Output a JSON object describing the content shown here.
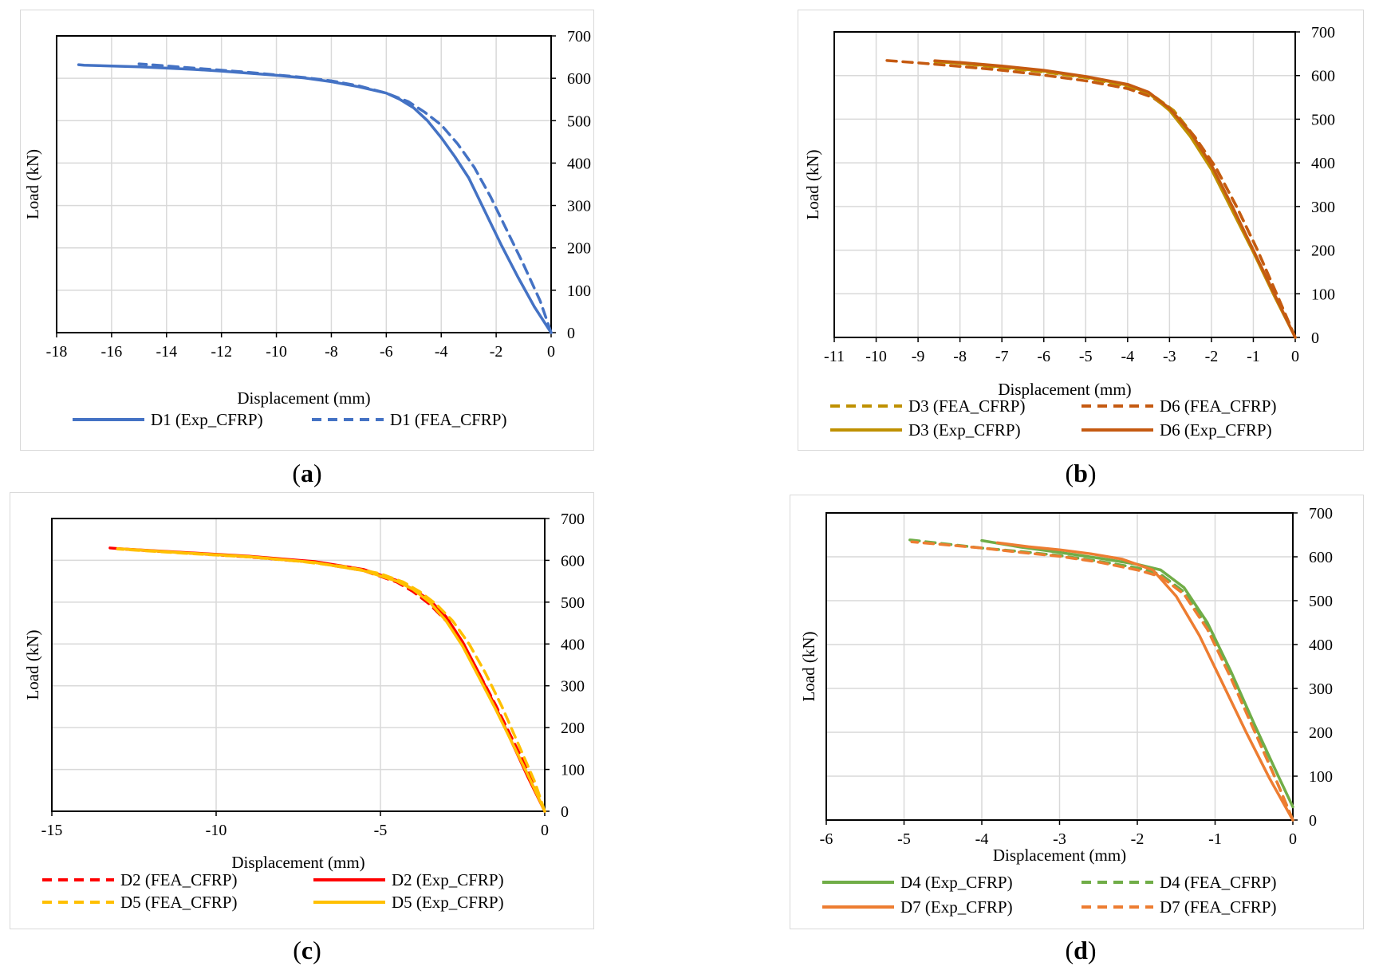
{
  "chart_data": [
    {
      "id": "a",
      "label": "a",
      "type": "line",
      "xlabel": "Displacement (mm)",
      "ylabel": "Load (kN)",
      "xlim": [
        -18,
        0
      ],
      "ylim": [
        0,
        700
      ],
      "xticks": [
        -18,
        -16,
        -14,
        -12,
        -10,
        -8,
        -6,
        -4,
        -2,
        0
      ],
      "yticks": [
        0,
        100,
        200,
        300,
        400,
        500,
        600,
        700
      ],
      "grid": true,
      "legend": "bottom",
      "series": [
        {
          "name": "D1 (Exp_CFRP)",
          "color": "#4472C4",
          "dash": false,
          "x": [
            0,
            -0.6,
            -1.2,
            -1.8,
            -2.4,
            -3.0,
            -3.5,
            -4.0,
            -4.5,
            -5.0,
            -5.5,
            -6.0,
            -7.0,
            -8.0,
            -9.0,
            -10.0,
            -11.0,
            -12.0,
            -13.0,
            -14.0,
            -15.0,
            -16.0,
            -17.0,
            -17.2
          ],
          "y": [
            0,
            60,
            130,
            205,
            285,
            365,
            415,
            460,
            500,
            530,
            550,
            565,
            580,
            592,
            601,
            607,
            612,
            617,
            621,
            624,
            627,
            629,
            631,
            632
          ]
        },
        {
          "name": "D1 (FEA_CFRP)",
          "color": "#4472C4",
          "dash": true,
          "x": [
            0,
            -0.4,
            -1.0,
            -1.6,
            -2.2,
            -2.8,
            -3.4,
            -4.0,
            -4.6,
            -5.2,
            -6.0,
            -7.0,
            -8.0,
            -9.0,
            -10.0,
            -11.0,
            -12.0,
            -13.0,
            -14.0,
            -15.0
          ],
          "y": [
            0,
            75,
            160,
            240,
            320,
            390,
            445,
            490,
            520,
            545,
            565,
            582,
            594,
            602,
            608,
            614,
            619,
            624,
            629,
            634
          ]
        }
      ]
    },
    {
      "id": "b",
      "label": "b",
      "type": "line",
      "xlabel": "Displacement (mm)",
      "ylabel": "Load (kN)",
      "xlim": [
        -11,
        0
      ],
      "ylim": [
        0,
        700
      ],
      "xticks": [
        -11,
        -10,
        -9,
        -8,
        -7,
        -6,
        -5,
        -4,
        -3,
        -2,
        -1,
        0
      ],
      "yticks": [
        0,
        100,
        200,
        300,
        400,
        500,
        600,
        700
      ],
      "grid": true,
      "legend": "bottom",
      "series": [
        {
          "name": "D3 (FEA_CFRP)",
          "color": "#BF9000",
          "dash": true,
          "x": [
            0,
            -0.4,
            -0.9,
            -1.4,
            -1.9,
            -2.4,
            -2.9,
            -3.4,
            -4.0,
            -5.0,
            -6.0,
            -7.0,
            -8.0,
            -8.7
          ],
          "y": [
            0,
            90,
            200,
            300,
            390,
            460,
            520,
            555,
            575,
            595,
            608,
            618,
            628,
            634
          ]
        },
        {
          "name": "D6 (FEA_CFRP)",
          "color": "#C55A11",
          "dash": true,
          "x": [
            0,
            -0.4,
            -0.9,
            -1.4,
            -1.9,
            -2.4,
            -2.9,
            -3.4,
            -4.0,
            -5.0,
            -6.0,
            -7.0,
            -8.0,
            -9.0,
            -9.8
          ],
          "y": [
            0,
            90,
            200,
            300,
            390,
            460,
            515,
            550,
            570,
            588,
            601,
            612,
            621,
            629,
            635
          ]
        },
        {
          "name": "D3 (Exp_CFRP)",
          "color": "#BF9000",
          "dash": false,
          "x": [
            0,
            -0.5,
            -1.0,
            -1.5,
            -2.0,
            -2.5,
            -3.0,
            -3.5,
            -4.0,
            -5.0,
            -6.0,
            -7.0,
            -8.0,
            -8.6
          ],
          "y": [
            0,
            95,
            195,
            290,
            385,
            460,
            520,
            560,
            578,
            597,
            610,
            620,
            628,
            632
          ]
        },
        {
          "name": "D6 (Exp_CFRP)",
          "color": "#C55A11",
          "dash": false,
          "x": [
            0,
            -0.5,
            -1.0,
            -1.5,
            -2.0,
            -2.5,
            -3.0,
            -3.5,
            -4.0,
            -5.0,
            -6.0,
            -7.0,
            -8.0,
            -8.6
          ],
          "y": [
            0,
            100,
            200,
            300,
            395,
            470,
            525,
            562,
            580,
            598,
            612,
            622,
            630,
            634
          ]
        }
      ]
    },
    {
      "id": "c",
      "label": "c",
      "type": "line",
      "xlabel": "Displacement (mm)",
      "ylabel": "Load (kN)",
      "xlim": [
        -15,
        0
      ],
      "ylim": [
        0,
        700
      ],
      "xticks": [
        -15,
        -10,
        -5,
        0
      ],
      "yticks": [
        0,
        100,
        200,
        300,
        400,
        500,
        600,
        700
      ],
      "grid": true,
      "legend": "bottom",
      "series": [
        {
          "name": "D2 (FEA_CFRP)",
          "color": "#FF0000",
          "dash": true,
          "x": [
            0,
            -0.5,
            -1.0,
            -1.5,
            -2.0,
            -2.5,
            -3.0,
            -3.5,
            -4.0,
            -4.5,
            -5.5,
            -7.0,
            -9.0,
            -11.0,
            -12.5,
            -13.3
          ],
          "y": [
            0,
            95,
            175,
            255,
            330,
            400,
            455,
            495,
            525,
            548,
            575,
            595,
            608,
            618,
            625,
            630
          ]
        },
        {
          "name": "D2 (Exp_CFRP)",
          "color": "#FF0000",
          "dash": false,
          "x": [
            0,
            -0.5,
            -1.0,
            -1.5,
            -2.0,
            -2.5,
            -3.0,
            -3.5,
            -4.0,
            -4.5,
            -5.5,
            -7.0,
            -9.0,
            -11.0,
            -13.0
          ],
          "y": [
            0,
            80,
            165,
            250,
            330,
            405,
            465,
            505,
            530,
            552,
            578,
            597,
            610,
            619,
            628
          ]
        },
        {
          "name": "D5 (FEA_CFRP)",
          "color": "#FFC000",
          "dash": true,
          "x": [
            0,
            -0.3,
            -0.8,
            -1.3,
            -1.8,
            -2.3,
            -2.8,
            -3.3,
            -3.8,
            -4.3,
            -5.0,
            -6.0,
            -7.5,
            -9.0,
            -11.0,
            -13.0
          ],
          "y": [
            0,
            70,
            160,
            250,
            330,
            400,
            455,
            495,
            525,
            548,
            568,
            584,
            598,
            608,
            617,
            627
          ]
        },
        {
          "name": "D5 (Exp_CFRP)",
          "color": "#FFC000",
          "dash": false,
          "x": [
            0,
            -0.5,
            -1.0,
            -1.5,
            -2.0,
            -2.5,
            -3.0,
            -3.5,
            -4.0,
            -4.5,
            -5.5,
            -7.0,
            -9.0,
            -11.0,
            -13.0
          ],
          "y": [
            0,
            85,
            165,
            245,
            320,
            395,
            455,
            500,
            530,
            550,
            575,
            595,
            609,
            618,
            628
          ]
        }
      ]
    },
    {
      "id": "d",
      "label": "d",
      "type": "line",
      "xlabel": "Displacement (mm)",
      "ylabel": "Load (kN)",
      "xlim": [
        -6,
        0
      ],
      "ylim": [
        0,
        700
      ],
      "xticks": [
        -6,
        -5,
        -4,
        -3,
        -2,
        -1,
        0
      ],
      "yticks": [
        0,
        100,
        200,
        300,
        400,
        500,
        600,
        700
      ],
      "grid": true,
      "legend": "bottom",
      "series": [
        {
          "name": "D4 (Exp_CFRP)",
          "color": "#70AD47",
          "dash": false,
          "x": [
            0,
            -0.2,
            -0.5,
            -0.8,
            -1.1,
            -1.4,
            -1.7,
            -2.0,
            -2.5,
            -3.0,
            -3.5,
            -4.0
          ],
          "y": [
            30,
            105,
            220,
            340,
            450,
            530,
            570,
            583,
            597,
            610,
            622,
            637
          ]
        },
        {
          "name": "D4 (FEA_CFRP)",
          "color": "#70AD47",
          "dash": true,
          "x": [
            0,
            -0.2,
            -0.5,
            -0.8,
            -1.1,
            -1.4,
            -1.7,
            -2.0,
            -2.5,
            -3.0,
            -3.5,
            -4.0,
            -4.5,
            -5.0
          ],
          "y": [
            0,
            85,
            210,
            330,
            440,
            520,
            560,
            575,
            590,
            603,
            612,
            620,
            630,
            640
          ]
        },
        {
          "name": "D7 (Exp_CFRP)",
          "color": "#ED7D31",
          "dash": false,
          "x": [
            0,
            -0.3,
            -0.6,
            -0.9,
            -1.2,
            -1.5,
            -1.8,
            -2.2,
            -2.6,
            -3.0,
            -3.4,
            -3.8
          ],
          "y": [
            0,
            95,
            200,
            310,
            420,
            510,
            570,
            595,
            607,
            616,
            623,
            632
          ]
        },
        {
          "name": "D7 (FEA_CFRP)",
          "color": "#ED7D31",
          "dash": true,
          "x": [
            0,
            -0.2,
            -0.5,
            -0.8,
            -1.1,
            -1.4,
            -1.7,
            -2.0,
            -2.5,
            -3.0,
            -3.5,
            -4.0,
            -4.5,
            -4.9
          ],
          "y": [
            0,
            85,
            205,
            325,
            435,
            515,
            555,
            570,
            588,
            601,
            610,
            620,
            628,
            634
          ]
        }
      ]
    }
  ]
}
